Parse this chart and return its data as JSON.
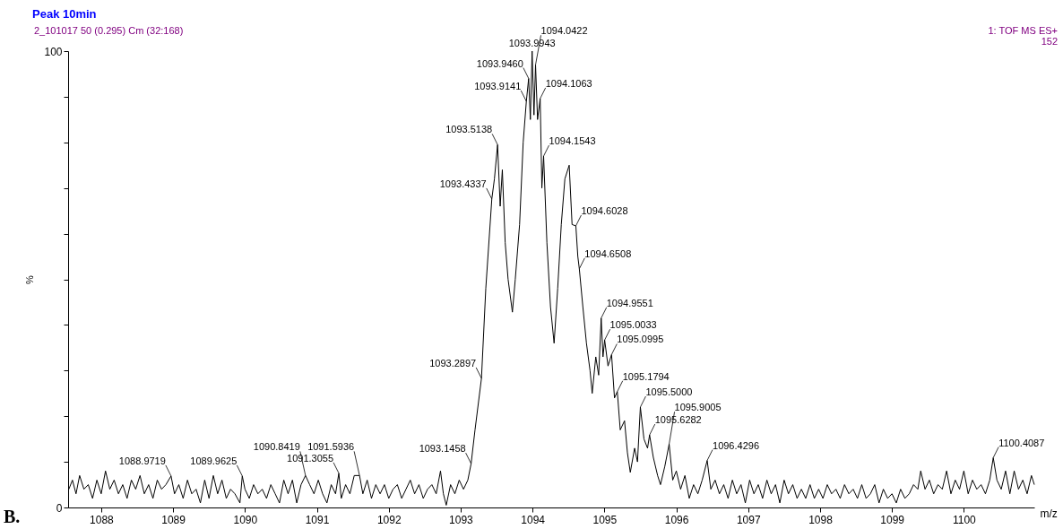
{
  "chart_data": {
    "type": "line",
    "title": "Peak 10min",
    "subtitle": "2_101017 50 (0.295) Cm (32:168)",
    "xlabel": "m/z",
    "ylabel": "%",
    "x": [
      1087.55,
      1087.6,
      1087.65,
      1087.7,
      1087.76,
      1087.82,
      1087.88,
      1087.94,
      1088.0,
      1088.06,
      1088.12,
      1088.18,
      1088.24,
      1088.3,
      1088.36,
      1088.42,
      1088.48,
      1088.54,
      1088.6,
      1088.66,
      1088.72,
      1088.78,
      1088.84,
      1088.9,
      1088.9719,
      1089.02,
      1089.08,
      1089.14,
      1089.2,
      1089.26,
      1089.32,
      1089.38,
      1089.44,
      1089.5,
      1089.56,
      1089.62,
      1089.68,
      1089.74,
      1089.8,
      1089.86,
      1089.93,
      1089.9625,
      1090.0,
      1090.06,
      1090.12,
      1090.18,
      1090.24,
      1090.3,
      1090.36,
      1090.42,
      1090.48,
      1090.54,
      1090.6,
      1090.66,
      1090.72,
      1090.78,
      1090.8419,
      1090.9,
      1090.96,
      1091.02,
      1091.08,
      1091.14,
      1091.2,
      1091.26,
      1091.3055,
      1091.34,
      1091.4,
      1091.46,
      1091.52,
      1091.5936,
      1091.64,
      1091.7,
      1091.76,
      1091.82,
      1091.88,
      1091.94,
      1092.0,
      1092.06,
      1092.12,
      1092.18,
      1092.24,
      1092.3,
      1092.36,
      1092.42,
      1092.48,
      1092.54,
      1092.6,
      1092.66,
      1092.72,
      1092.76,
      1092.8,
      1092.86,
      1092.92,
      1092.98,
      1093.04,
      1093.1,
      1093.1458,
      1093.2,
      1093.2897,
      1093.35,
      1093.4337,
      1093.47,
      1093.5138,
      1093.55,
      1093.58,
      1093.62,
      1093.66,
      1093.72,
      1093.76,
      1093.82,
      1093.87,
      1093.9141,
      1093.946,
      1093.97,
      1093.9943,
      1094.02,
      1094.0422,
      1094.07,
      1094.1063,
      1094.13,
      1094.1543,
      1094.2,
      1094.25,
      1094.3,
      1094.35,
      1094.4,
      1094.45,
      1094.51,
      1094.55,
      1094.6028,
      1094.63,
      1094.6508,
      1094.7,
      1094.75,
      1094.8,
      1094.83,
      1094.88,
      1094.92,
      1094.9551,
      1094.98,
      1095.0033,
      1095.05,
      1095.0995,
      1095.14,
      1095.1794,
      1095.22,
      1095.28,
      1095.32,
      1095.36,
      1095.42,
      1095.46,
      1095.5,
      1095.55,
      1095.6,
      1095.6282,
      1095.68,
      1095.74,
      1095.78,
      1095.84,
      1095.9005,
      1095.95,
      1096.0,
      1096.06,
      1096.12,
      1096.18,
      1096.24,
      1096.3,
      1096.36,
      1096.4296,
      1096.48,
      1096.54,
      1096.6,
      1096.66,
      1096.72,
      1096.78,
      1096.84,
      1096.9,
      1096.96,
      1097.02,
      1097.08,
      1097.14,
      1097.2,
      1097.26,
      1097.32,
      1097.38,
      1097.44,
      1097.5,
      1097.56,
      1097.62,
      1097.68,
      1097.74,
      1097.8,
      1097.86,
      1097.92,
      1097.98,
      1098.04,
      1098.1,
      1098.16,
      1098.22,
      1098.28,
      1098.34,
      1098.4,
      1098.46,
      1098.52,
      1098.58,
      1098.64,
      1098.7,
      1098.76,
      1098.82,
      1098.88,
      1098.94,
      1099.0,
      1099.06,
      1099.12,
      1099.18,
      1099.24,
      1099.3,
      1099.36,
      1099.4,
      1099.46,
      1099.52,
      1099.58,
      1099.64,
      1099.7,
      1099.76,
      1099.82,
      1099.88,
      1099.94,
      1100.0,
      1100.06,
      1100.12,
      1100.18,
      1100.24,
      1100.3,
      1100.36,
      1100.4087,
      1100.46,
      1100.52,
      1100.58,
      1100.64,
      1100.7,
      1100.76,
      1100.82,
      1100.88,
      1100.94,
      1100.98
    ],
    "series": [
      {
        "color": "#000000",
        "values": [
          4,
          6,
          3,
          7,
          4,
          5,
          2,
          6,
          3,
          8,
          4,
          6,
          3,
          5,
          2,
          6,
          4,
          7,
          3,
          5,
          2,
          6,
          4,
          5,
          6.9,
          3,
          5,
          2,
          6,
          3,
          4,
          1,
          6,
          2,
          7,
          3,
          6,
          2,
          4,
          3,
          1,
          6.9,
          4,
          2,
          5,
          3,
          4,
          2,
          5,
          3,
          1,
          6,
          3,
          6,
          1,
          5,
          7,
          5,
          3,
          6,
          3,
          1,
          5,
          3,
          7.5,
          2,
          5,
          3,
          7,
          7,
          3,
          6,
          2,
          5,
          3,
          5,
          2,
          4,
          5,
          2,
          4,
          6,
          3,
          5,
          2,
          4,
          5,
          3,
          8,
          3,
          0.5,
          5,
          3,
          6,
          4,
          6,
          9.6,
          17,
          28.3,
          48,
          67.6,
          72,
          79.5,
          66,
          74,
          58,
          50,
          42.8,
          50,
          62,
          80,
          89,
          94,
          85,
          100,
          86,
          97,
          85,
          89.6,
          70,
          77,
          58,
          44,
          36,
          48,
          62,
          72,
          75,
          62,
          61.7,
          55,
          52.3,
          44,
          36,
          30,
          25,
          33,
          29,
          41.5,
          33,
          36.7,
          31,
          33.5,
          24,
          25.4,
          17,
          19,
          12,
          7.7,
          13,
          10,
          22,
          15,
          13,
          15.9,
          11,
          7,
          5,
          9,
          13.9,
          6,
          8,
          4,
          7,
          2,
          5,
          3,
          6,
          10.3,
          4,
          6,
          3,
          5,
          2,
          6,
          3,
          5,
          1,
          6,
          3,
          5,
          2,
          6,
          3,
          5,
          1,
          6,
          3,
          5,
          2,
          4,
          2,
          5,
          2,
          4,
          2,
          5,
          3,
          4,
          2,
          5,
          3,
          4,
          2,
          5,
          2,
          3,
          5,
          1,
          4,
          2,
          3,
          1,
          4,
          2,
          3,
          5,
          4,
          8,
          4,
          6,
          3,
          5,
          4,
          8,
          3,
          6,
          4,
          8,
          3,
          6,
          4,
          5,
          3,
          6,
          10.9,
          6,
          4,
          8,
          3,
          8,
          4,
          6,
          3,
          7,
          5
        ]
      }
    ],
    "xlim": [
      1087.54,
      1100.98
    ],
    "xticks": [
      1088,
      1089,
      1090,
      1091,
      1092,
      1093,
      1094,
      1095,
      1096,
      1097,
      1098,
      1099,
      1100
    ],
    "ylim": [
      0,
      100
    ],
    "yticks": [
      0,
      {
        "value": 10,
        "label": null
      },
      {
        "value": 20,
        "label": null
      },
      {
        "value": 30,
        "label": null
      },
      {
        "value": 40,
        "label": null
      },
      {
        "value": 50,
        "label": null
      },
      {
        "value": 60,
        "label": null
      },
      {
        "value": 70,
        "label": null
      },
      {
        "value": 80,
        "label": null
      },
      {
        "value": 90,
        "label": null
      },
      100
    ],
    "grid": false,
    "marker": "none",
    "line_style": "solid",
    "annotations": [
      "1: TOF MS ES+",
      "152",
      "B.",
      {
        "text": "1093.9943",
        "x": 1093.9943,
        "y": 100
      },
      {
        "text": "1093.9460",
        "x": 1093.946,
        "y": 94
      },
      {
        "text": "1094.0422",
        "x": 1094.0422,
        "y": 97
      },
      {
        "text": "1093.9141",
        "x": 1093.9141,
        "y": 89
      },
      {
        "text": "1094.1063",
        "x": 1094.1063,
        "y": 89.6
      },
      {
        "text": "1093.5138",
        "x": 1093.5138,
        "y": 79.5
      },
      {
        "text": "1094.1543",
        "x": 1094.1543,
        "y": 77
      },
      {
        "text": "1093.4337",
        "x": 1093.4337,
        "y": 67.6
      },
      {
        "text": "1094.6028",
        "x": 1094.6028,
        "y": 61.7
      },
      {
        "text": "1094.6508",
        "x": 1094.6508,
        "y": 52.3
      },
      {
        "text": "1094.9551",
        "x": 1094.9551,
        "y": 41.5
      },
      {
        "text": "1095.0033",
        "x": 1095.0033,
        "y": 36.7
      },
      {
        "text": "1095.0995",
        "x": 1095.0995,
        "y": 33.5
      },
      {
        "text": "1093.2897",
        "x": 1093.2897,
        "y": 28.3
      },
      {
        "text": "1095.1794",
        "x": 1095.1794,
        "y": 25.4
      },
      {
        "text": "1095.5000",
        "x": 1095.5,
        "y": 22
      },
      {
        "text": "1095.6282",
        "x": 1095.6282,
        "y": 15.9
      },
      {
        "text": "1095.9005",
        "x": 1095.9005,
        "y": 13.9
      },
      {
        "text": "1100.4087",
        "x": 1100.4087,
        "y": 10.9
      },
      {
        "text": "1096.4296",
        "x": 1096.4296,
        "y": 10.3
      },
      {
        "text": "1093.1458",
        "x": 1093.1458,
        "y": 9.6
      },
      {
        "text": "1091.3055",
        "x": 1091.3055,
        "y": 7.5
      },
      {
        "text": "1090.8419",
        "x": 1090.8419,
        "y": 7
      },
      {
        "text": "1091.5936",
        "x": 1091.5936,
        "y": 7
      },
      {
        "text": "1088.9719",
        "x": 1088.9719,
        "y": 6.9
      },
      {
        "text": "1089.9625",
        "x": 1089.9625,
        "y": 6.9
      }
    ]
  }
}
